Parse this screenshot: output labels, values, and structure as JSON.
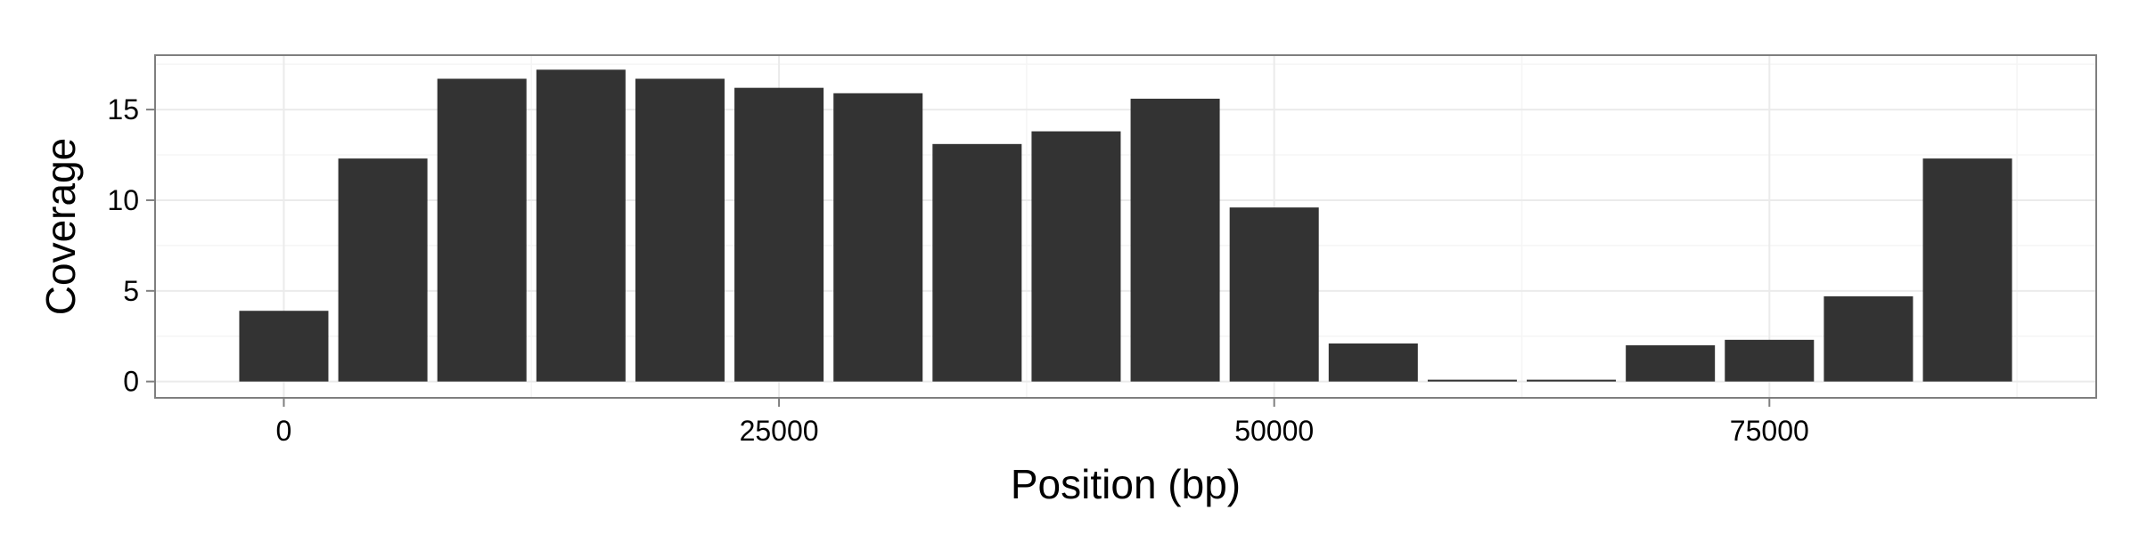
{
  "chart_data": {
    "type": "bar",
    "title": "",
    "xlabel": "Position (bp)",
    "ylabel": "Coverage",
    "x": [
      0,
      5000,
      10000,
      15000,
      20000,
      25000,
      30000,
      35000,
      40000,
      45000,
      50000,
      55000,
      60000,
      65000,
      70000,
      75000,
      80000,
      85000
    ],
    "values": [
      3.9,
      12.3,
      16.7,
      17.2,
      16.7,
      16.2,
      15.9,
      13.1,
      13.8,
      15.6,
      9.6,
      2.1,
      0.1,
      0.1,
      2.0,
      2.3,
      4.7,
      12.3
    ],
    "bin_width": 5000,
    "xlim": [
      -6500,
      91500
    ],
    "ylim": [
      -0.9,
      18.0
    ],
    "x_ticks": [
      0,
      25000,
      50000,
      75000
    ],
    "x_tick_labels": [
      "0",
      "25000",
      "50000",
      "75000"
    ],
    "y_ticks": [
      0,
      5,
      10,
      15
    ],
    "y_tick_labels": [
      "0",
      "5",
      "10",
      "15"
    ],
    "grid": true,
    "legend": "none",
    "colors": {
      "bar": "#333333",
      "panel_border": "#7f7f7f",
      "grid_major": "#ebebeb",
      "grid_minor": "#f5f5f5",
      "tick": "#7f7f7f"
    }
  }
}
